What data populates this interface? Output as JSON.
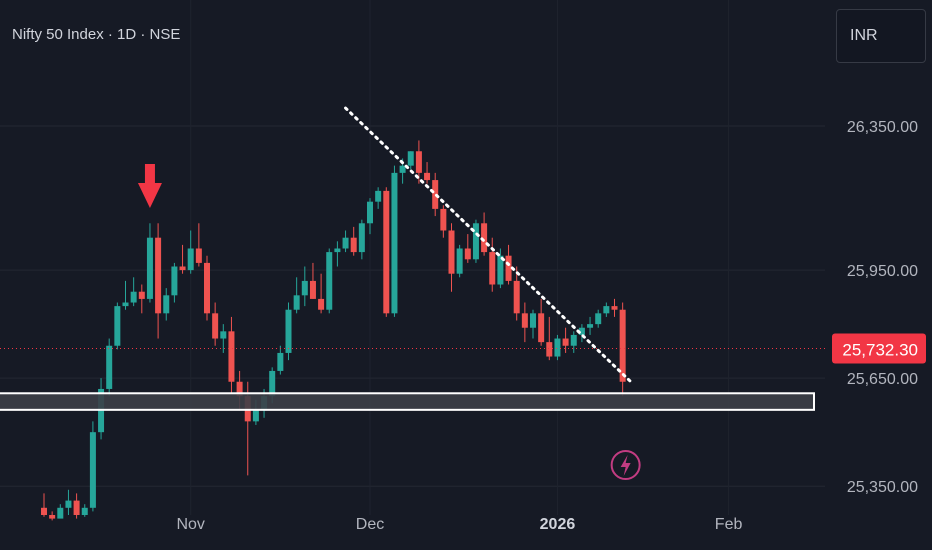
{
  "header": {
    "title": "Nifty 50 Index · 1D · NSE",
    "currency": "INR"
  },
  "colors": {
    "background": "#161a25",
    "up": "#26a69a",
    "down": "#ef5350",
    "text": "#b2b5be",
    "price_label_bg": "#f23645",
    "support_zone_border": "#ffffff",
    "support_zone_fill": "#3c3f47"
  },
  "icons": {
    "arrow": "down-arrow-icon",
    "event": "lightning-bolt-icon"
  },
  "chart_data": {
    "type": "candlestick",
    "title": "Nifty 50 Index · 1D · NSE",
    "y_ticks": [
      {
        "value": 25350,
        "label": "25,350.00"
      },
      {
        "value": 25650,
        "label": "25,650.00"
      },
      {
        "value": 25950,
        "label": "25,950.00"
      },
      {
        "value": 26350,
        "label": "26,350.00"
      }
    ],
    "x_ticks": [
      {
        "label": "Nov",
        "bar": 18,
        "bold": false
      },
      {
        "label": "Dec",
        "bar": 40,
        "bold": false
      },
      {
        "label": "2026",
        "bar": 63,
        "bold": true
      },
      {
        "label": "Feb",
        "bar": 84,
        "bold": false
      }
    ],
    "ylim": [
      25270,
      26700
    ],
    "last_price": {
      "value": 25732.3,
      "label": "25,732.30"
    },
    "support_zone": [
      25562,
      25608
    ],
    "trendline": {
      "from": {
        "bar": 37,
        "price": 26400
      },
      "to": {
        "bar": 72,
        "price": 25640
      }
    },
    "arrow_marker_bar": 13,
    "event_marker_bar": 71,
    "candles": [
      [
        25290,
        25330,
        25265,
        25270
      ],
      [
        25270,
        25280,
        25255,
        25260
      ],
      [
        25260,
        25300,
        25265,
        25290
      ],
      [
        25290,
        25340,
        25270,
        25310
      ],
      [
        25310,
        25330,
        25260,
        25270
      ],
      [
        25270,
        25300,
        25265,
        25290
      ],
      [
        25290,
        25530,
        25280,
        25500
      ],
      [
        25500,
        25650,
        25480,
        25620
      ],
      [
        25620,
        25760,
        25600,
        25740
      ],
      [
        25740,
        25860,
        25730,
        25850
      ],
      [
        25850,
        25920,
        25840,
        25860
      ],
      [
        25860,
        25930,
        25850,
        25890
      ],
      [
        25890,
        25910,
        25830,
        25870
      ],
      [
        25870,
        26080,
        25860,
        26040
      ],
      [
        26040,
        26080,
        25760,
        25830
      ],
      [
        25830,
        25900,
        25810,
        25880
      ],
      [
        25880,
        25970,
        25860,
        25960
      ],
      [
        25960,
        26020,
        25940,
        25950
      ],
      [
        25950,
        26060,
        25940,
        26010
      ],
      [
        26010,
        26080,
        25960,
        25970
      ],
      [
        25970,
        25990,
        25810,
        25830
      ],
      [
        25830,
        25860,
        25740,
        25760
      ],
      [
        25760,
        25800,
        25720,
        25780
      ],
      [
        25780,
        25820,
        25610,
        25640
      ],
      [
        25640,
        25670,
        25560,
        25600
      ],
      [
        25600,
        25640,
        25380,
        25530
      ],
      [
        25530,
        25590,
        25520,
        25560
      ],
      [
        25560,
        25620,
        25540,
        25600
      ],
      [
        25600,
        25680,
        25580,
        25670
      ],
      [
        25670,
        25740,
        25660,
        25720
      ],
      [
        25720,
        25860,
        25700,
        25840
      ],
      [
        25840,
        25930,
        25830,
        25880
      ],
      [
        25880,
        25960,
        25850,
        25920
      ],
      [
        25920,
        25970,
        25870,
        25870
      ],
      [
        25870,
        25940,
        25830,
        25840
      ],
      [
        25840,
        26010,
        25830,
        26000
      ],
      [
        26000,
        26030,
        25960,
        26010
      ],
      [
        26010,
        26060,
        26000,
        26040
      ],
      [
        26040,
        26070,
        25990,
        26000
      ],
      [
        26000,
        26090,
        25980,
        26080
      ],
      [
        26080,
        26150,
        26050,
        26140
      ],
      [
        26140,
        26180,
        26120,
        26170
      ],
      [
        26170,
        26180,
        25820,
        25830
      ],
      [
        25830,
        26240,
        25820,
        26220
      ],
      [
        26220,
        26260,
        26190,
        26240
      ],
      [
        26240,
        26280,
        26230,
        26280
      ],
      [
        26280,
        26310,
        26190,
        26220
      ],
      [
        26220,
        26250,
        26190,
        26200
      ],
      [
        26200,
        26220,
        26100,
        26120
      ],
      [
        26120,
        26130,
        26040,
        26060
      ],
      [
        26060,
        26080,
        25890,
        25940
      ],
      [
        25940,
        26020,
        25930,
        26010
      ],
      [
        26010,
        26050,
        25970,
        25980
      ],
      [
        25980,
        26090,
        25970,
        26080
      ],
      [
        26080,
        26110,
        25990,
        26000
      ],
      [
        26000,
        26040,
        25890,
        25910
      ],
      [
        25910,
        26010,
        25900,
        25990
      ],
      [
        25990,
        26020,
        25910,
        25920
      ],
      [
        25920,
        25960,
        25810,
        25830
      ],
      [
        25830,
        25860,
        25750,
        25790
      ],
      [
        25790,
        25840,
        25760,
        25830
      ],
      [
        25830,
        25870,
        25740,
        25750
      ],
      [
        25750,
        25820,
        25700,
        25710
      ],
      [
        25710,
        25770,
        25700,
        25760
      ],
      [
        25760,
        25790,
        25720,
        25740
      ],
      [
        25740,
        25780,
        25720,
        25770
      ],
      [
        25770,
        25800,
        25750,
        25790
      ],
      [
        25790,
        25820,
        25770,
        25800
      ],
      [
        25800,
        25840,
        25790,
        25830
      ],
      [
        25830,
        25860,
        25820,
        25850
      ],
      [
        25850,
        25870,
        25820,
        25840
      ],
      [
        25840,
        25860,
        25600,
        25640
      ]
    ]
  }
}
